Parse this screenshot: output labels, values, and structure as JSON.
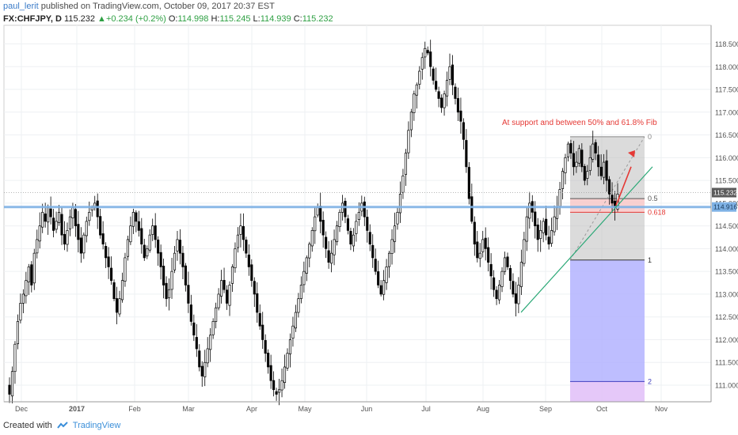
{
  "header": {
    "author": "paul_lerit",
    "published": "published on TradingView.com, October 09, 2017 20:37 EST",
    "symbol": "FX:CHFJPY, D",
    "last": "115.232",
    "change_arrow": "▲",
    "change": "+0.234 (+0.2%)",
    "o_label": "O:",
    "o_val": "114.998",
    "h_label": "H:",
    "h_val": "115.245",
    "l_label": "L:",
    "l_val": "114.939",
    "c_label": "C:",
    "c_val": "115.232"
  },
  "footer": {
    "created_with": "Created with",
    "brand": "TradingView"
  },
  "colors": {
    "candle_up_fill": "#ffffff",
    "candle_down_fill": "#000000",
    "candle_stroke": "#000000",
    "support_line": "#7fb2e5",
    "trendline": "#2aa876",
    "arrow": "#e53935",
    "fib_fill_top": "#bdbdbd",
    "fib_band": "#f8c8c8",
    "fib_fill_ext": "#b3b3ff",
    "fib_fill_ext2": "#e2c2f8",
    "annotation": "#e53935",
    "axis_text": "#555555",
    "price_badge": "#5b5b5b",
    "support_badge": "#7fb2e5"
  },
  "chart_data": {
    "type": "candlestick",
    "y_axis_labels": [
      "118.500",
      "118.000",
      "117.500",
      "117.000",
      "116.500",
      "116.000",
      "115.500",
      "115.000",
      "114.500",
      "114.000",
      "113.500",
      "113.000",
      "112.500",
      "112.000",
      "111.500",
      "111.000"
    ],
    "x_axis_labels": [
      "Dec",
      "2017",
      "Feb",
      "Mar",
      "Apr",
      "May",
      "Jun",
      "Jul",
      "Aug",
      "Sep",
      "Oct",
      "Nov"
    ],
    "ylim": [
      110.75,
      118.85
    ],
    "last_price": "115.232",
    "support_price": "114.916",
    "annotation": "At support and between 50% and 61.8% Fib",
    "fib_levels": [
      {
        "label": "0",
        "price": 116.46
      },
      {
        "label": "0.5",
        "price": 115.1
      },
      {
        "label": "0.618",
        "price": 114.8
      },
      {
        "label": "1",
        "price": 113.75
      },
      {
        "label": "2",
        "price": 111.08
      }
    ],
    "closes": [
      110.8,
      111.3,
      111.9,
      112.4,
      112.8,
      113.0,
      113.3,
      113.6,
      113.2,
      113.9,
      114.2,
      114.5,
      114.8,
      114.6,
      114.9,
      114.7,
      114.4,
      114.6,
      114.8,
      114.3,
      114.1,
      114.4,
      114.7,
      114.9,
      114.5,
      114.2,
      113.9,
      114.3,
      114.6,
      114.8,
      114.9,
      115.0,
      114.7,
      114.3,
      114.1,
      113.8,
      113.6,
      113.3,
      112.9,
      112.6,
      112.9,
      113.3,
      113.8,
      114.2,
      114.5,
      114.8,
      114.6,
      114.4,
      114.1,
      113.8,
      114.0,
      114.3,
      114.5,
      114.2,
      113.9,
      113.6,
      113.2,
      112.9,
      113.1,
      113.5,
      113.9,
      114.2,
      113.9,
      113.6,
      113.2,
      112.8,
      112.4,
      112.1,
      111.8,
      111.4,
      111.2,
      111.5,
      111.8,
      112.1,
      112.4,
      112.7,
      113.0,
      113.3,
      113.1,
      112.8,
      113.2,
      113.6,
      114.0,
      114.3,
      114.5,
      114.2,
      113.9,
      113.6,
      113.3,
      113.0,
      112.6,
      112.3,
      112.0,
      111.7,
      111.4,
      111.1,
      110.9,
      110.8,
      110.9,
      111.1,
      111.4,
      111.7,
      112.0,
      112.3,
      112.6,
      112.9,
      113.2,
      113.5,
      113.8,
      114.1,
      114.4,
      114.7,
      114.9,
      114.6,
      114.3,
      114.0,
      113.7,
      113.9,
      114.2,
      114.5,
      114.8,
      115.0,
      114.7,
      114.4,
      114.1,
      114.3,
      114.6,
      114.8,
      115.0,
      114.7,
      114.4,
      114.1,
      113.8,
      113.5,
      113.2,
      113.0,
      113.3,
      113.6,
      113.9,
      114.2,
      114.5,
      114.8,
      115.2,
      115.6,
      116.1,
      116.6,
      117.0,
      117.4,
      117.6,
      117.9,
      118.2,
      118.4,
      118.3,
      118.0,
      117.7,
      117.5,
      117.3,
      117.1,
      117.4,
      117.7,
      118.0,
      117.6,
      117.3,
      117.0,
      116.8,
      116.4,
      115.8,
      115.1,
      114.6,
      114.1,
      113.8,
      113.9,
      114.2,
      114.0,
      113.7,
      113.4,
      113.1,
      112.9,
      113.2,
      113.5,
      113.8,
      113.6,
      113.3,
      113.0,
      112.8,
      113.2,
      113.7,
      114.2,
      114.7,
      115.0,
      114.8,
      114.5,
      114.2,
      114.4,
      114.6,
      114.3,
      114.1,
      114.4,
      114.7,
      114.9,
      115.3,
      115.7,
      116.0,
      116.3,
      116.1,
      115.8,
      115.9,
      116.2,
      115.8,
      115.5,
      115.7,
      116.0,
      116.3,
      116.1,
      115.8,
      115.6,
      115.9,
      115.5,
      115.2,
      115.0,
      114.9,
      115.2
    ]
  }
}
